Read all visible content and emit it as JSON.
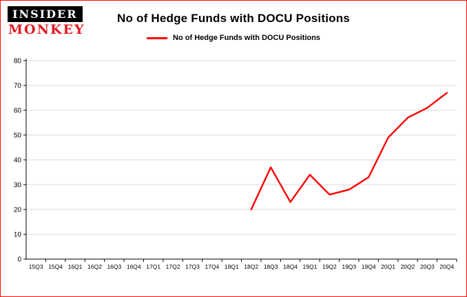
{
  "logo": {
    "line1": "INSIDER",
    "line2": "MONKEY"
  },
  "header": {
    "title": "No of Hedge Funds with DOCU Positions",
    "legend_label": "No of Hedge Funds with DOCU Positions"
  },
  "chart_data": {
    "type": "line",
    "title": "No of Hedge Funds with DOCU Positions",
    "categories": [
      "15Q3",
      "15Q4",
      "16Q1",
      "16Q2",
      "16Q3",
      "16Q4",
      "17Q1",
      "17Q2",
      "17Q3",
      "17Q4",
      "18Q1",
      "18Q2",
      "18Q3",
      "18Q4",
      "19Q1",
      "19Q2",
      "19Q3",
      "19Q4",
      "20Q1",
      "20Q2",
      "20Q3",
      "20Q4"
    ],
    "series": [
      {
        "name": "No of Hedge Funds with DOCU Positions",
        "color": "#ff0000",
        "values": [
          null,
          null,
          null,
          null,
          null,
          null,
          null,
          null,
          null,
          null,
          null,
          20,
          37,
          23,
          34,
          26,
          28,
          33,
          49,
          57,
          61,
          67
        ]
      }
    ],
    "xlabel": "",
    "ylabel": "",
    "ylim": [
      0,
      80
    ],
    "yticks": [
      0,
      10,
      20,
      30,
      40,
      50,
      60,
      70,
      80
    ],
    "grid": true,
    "legend_position": "top-center"
  },
  "colors": {
    "accent": "#ff0000",
    "grid": "#d9d9d9",
    "axis": "#000000",
    "logo_red": "#e31b23",
    "page_border": "#fb0a08"
  }
}
